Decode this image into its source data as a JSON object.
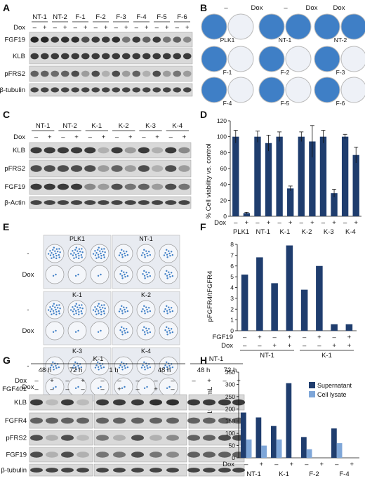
{
  "panels": {
    "A": {
      "label": "A",
      "lanes": [
        "NT-1",
        "NT-2",
        "F-1",
        "F-2",
        "F-3",
        "F-4",
        "F-5",
        "F-6"
      ],
      "row_dox": "Dox",
      "blots": [
        "FGF19",
        "KLB",
        "pFRS2",
        "β-tubulin"
      ]
    },
    "B": {
      "label": "B",
      "minus": "–",
      "dox": "Dox",
      "wells": [
        "PLK1",
        "NT-1",
        "NT-2",
        "F-1",
        "F-2",
        "F-3",
        "F-4",
        "F-5",
        "F-6"
      ]
    },
    "C": {
      "label": "C",
      "lanes": [
        "NT-1",
        "NT-2",
        "K-1",
        "K-2",
        "K-3",
        "K-4"
      ],
      "row_dox": "Dox",
      "blots": [
        "KLB",
        "pFRS2",
        "FGF19",
        "β-Actin"
      ]
    },
    "D": {
      "label": "D",
      "ylabel": "% Cell viability vs. control",
      "yticks": [
        "0",
        "20",
        "40",
        "60",
        "80",
        "100",
        "120"
      ],
      "row_dox": "Dox",
      "groups": [
        "PLK1",
        "NT-1",
        "K-1",
        "K-2",
        "K-3",
        "K-4"
      ]
    },
    "E": {
      "label": "E",
      "plates": [
        "PLK1",
        "NT-1",
        "K-1",
        "K-2",
        "K-3",
        "K-4"
      ],
      "row_minus": "-",
      "row_dox": "Dox"
    },
    "F": {
      "label": "F",
      "ylabel": "pFGFR4/tFGFR4",
      "yticks": [
        "0",
        "1",
        "2",
        "3",
        "4",
        "5",
        "6",
        "7",
        "8"
      ],
      "row1": "FGF19",
      "row2": "Dox",
      "groups": [
        "NT-1",
        "K-1"
      ]
    },
    "G": {
      "label": "G",
      "groupK1": "K-1",
      "groupNT1": "NT-1",
      "times": [
        "48 h",
        "72 h",
        "1 h",
        "48 h",
        "48 h",
        "72 h"
      ],
      "row_dox": "Dox",
      "row_fgf": "FGF401",
      "blots": [
        "KLB",
        "FGFR4",
        "pFRS2",
        "FGF19",
        "β-tubulin"
      ]
    },
    "H": {
      "label": "H",
      "ylabel": "FGF19 pg/mL",
      "yticks": [
        "0",
        "50",
        "100",
        "150",
        "200",
        "250",
        "300",
        "350"
      ],
      "legend": [
        "Supernatant",
        "Cell lysate"
      ],
      "row_dox": "Dox",
      "groups": [
        "NT-1",
        "K-1",
        "F-2",
        "F-4"
      ]
    }
  },
  "signs": {
    "minus": "–",
    "plus": "+"
  },
  "colors": {
    "bar_dark": "#1f3d6e",
    "bar_light": "#7ea6d8",
    "plate_blue": "#3f7fc6"
  },
  "chart_data": [
    {
      "panel": "D",
      "type": "bar",
      "categories": [
        "PLK1 –",
        "PLK1 +",
        "NT-1 –",
        "NT-1 +",
        "K-1 –",
        "K-1 +",
        "K-2 –",
        "K-2 +",
        "K-3 –",
        "K-3 +",
        "K-4 –",
        "K-4 +"
      ],
      "values": [
        100,
        4,
        100,
        92,
        100,
        35,
        100,
        94,
        100,
        29,
        100,
        77
      ],
      "errors": [
        8,
        1,
        7,
        10,
        6,
        3,
        6,
        20,
        8,
        5,
        3,
        10
      ],
      "ylabel": "% Cell viability vs. control",
      "ylim": [
        0,
        120
      ]
    },
    {
      "panel": "F",
      "type": "bar",
      "categories": [
        "NT-1 ––",
        "NT-1 +–",
        "NT-1 –+",
        "NT-1 ++",
        "K-1 ––",
        "K-1 +–",
        "K-1 –+",
        "K-1 ++"
      ],
      "values": [
        5.2,
        6.8,
        4.4,
        7.9,
        3.8,
        6.0,
        0.6,
        0.6
      ],
      "ylabel": "pFGFR4/tFGFR4",
      "ylim": [
        0,
        8
      ]
    },
    {
      "panel": "H",
      "type": "bar",
      "categories": [
        "NT-1 –",
        "NT-1 +",
        "K-1 –",
        "K-1 +",
        "F-2 –",
        "F-2 +",
        "F-4 –",
        "F-4 +"
      ],
      "series": [
        {
          "name": "Supernatant",
          "values": [
            185,
            165,
            130,
            305,
            85,
            0,
            120,
            0
          ]
        },
        {
          "name": "Cell lysate",
          "values": [
            75,
            50,
            75,
            0,
            35,
            0,
            60,
            0
          ]
        }
      ],
      "ylabel": "FGF19 pg/mL",
      "ylim": [
        0,
        350
      ]
    }
  ]
}
